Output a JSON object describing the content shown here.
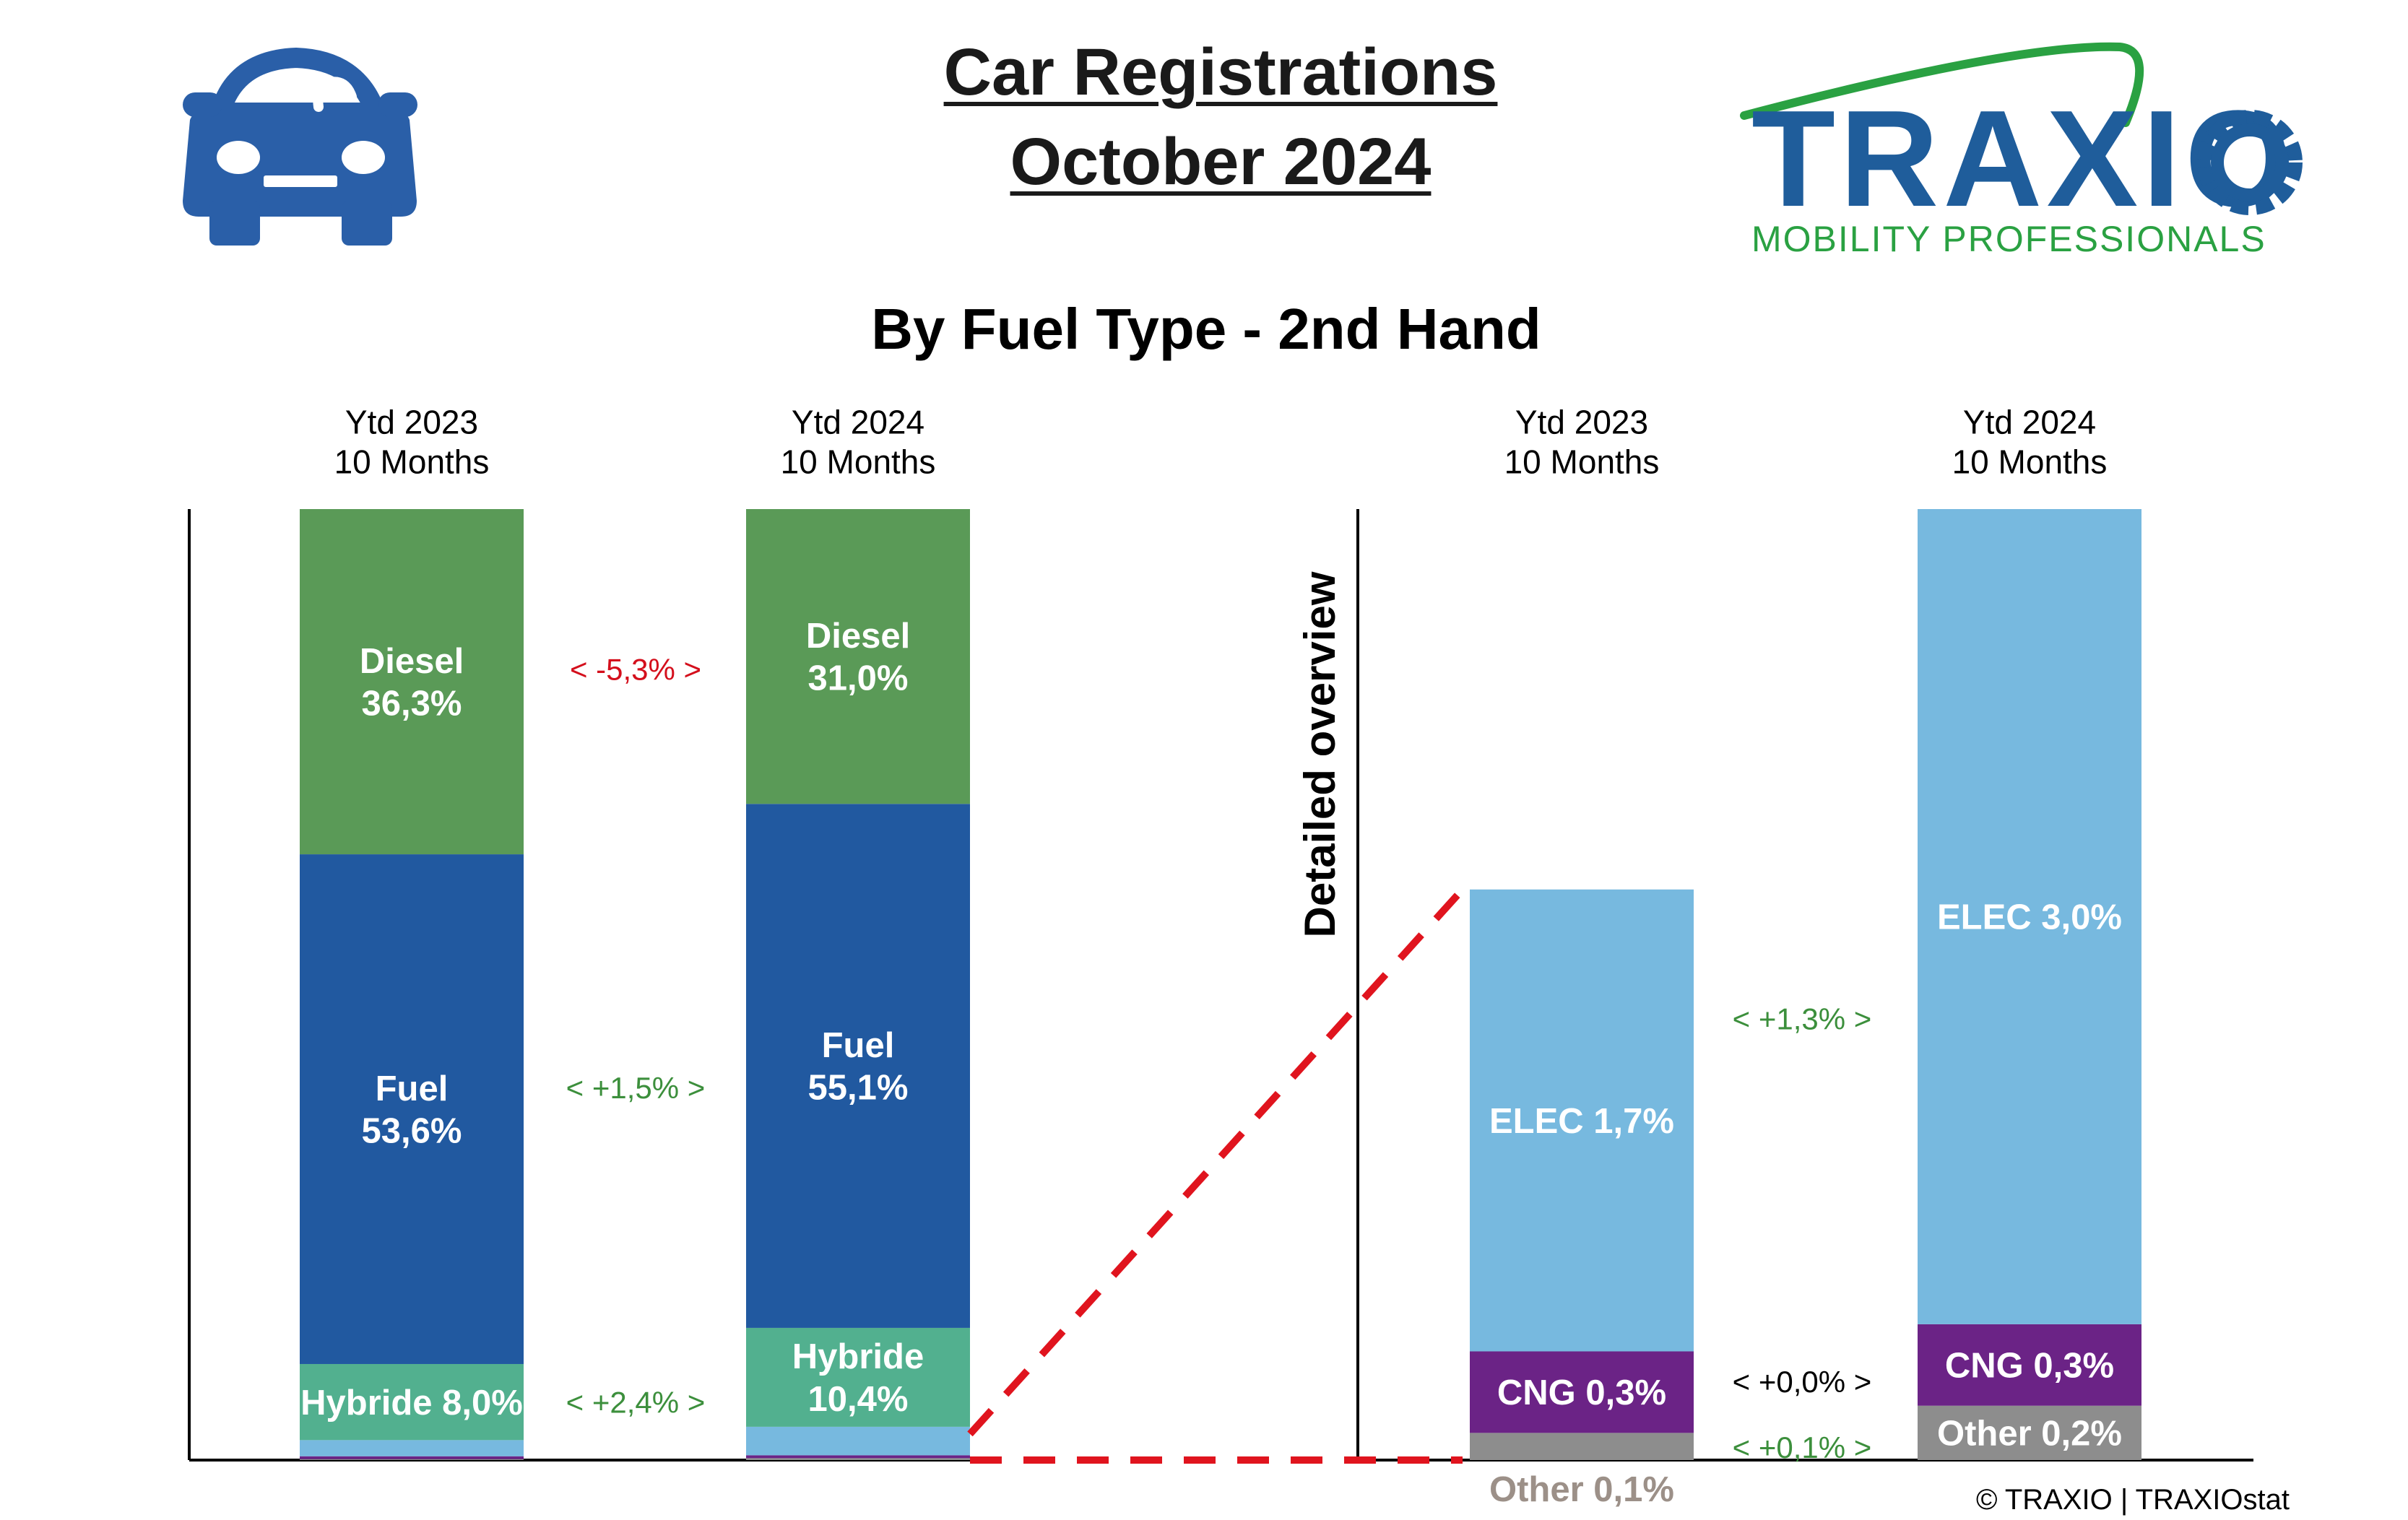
{
  "header": {
    "title_line1": "Car Registrations",
    "title_line2": "October 2024",
    "subtitle": "By Fuel Type - 2nd Hand",
    "logo_text": "TRAXIO",
    "logo_tagline": "MOBILITY PROFESSIONALS",
    "footer": "© TRAXIO | TRAXIOstat"
  },
  "colors": {
    "diesel": "#5a9a57",
    "fuel": "#2159a0",
    "hybride": "#52b08f",
    "elec": "#77b9df",
    "cng": "#6b2386",
    "other": "#8d8d8d",
    "other_label": "#9c9088",
    "pos": "#3c8f3c",
    "neg": "#d40f1c",
    "neutral": "#000000",
    "brand_blue": "#1f5d9b",
    "brand_green": "#2aa142",
    "car": "#2a5fa8",
    "zoom_line": "#e0141e"
  },
  "chart_data": [
    {
      "type": "bar",
      "stacked": true,
      "note_label": "Detailed overview",
      "categories": [
        {
          "line1": "Ytd 2023",
          "line2": "10 Months"
        },
        {
          "line1": "Ytd 2024",
          "line2": "10 Months"
        }
      ],
      "ylim": [
        0,
        100
      ],
      "series": [
        {
          "key": "other",
          "values": [
            0.1,
            0.2
          ]
        },
        {
          "key": "cng",
          "values": [
            0.3,
            0.3
          ]
        },
        {
          "key": "elec",
          "values": [
            1.7,
            3.0
          ]
        },
        {
          "key": "hybride",
          "name": "Hybride",
          "values": [
            8.0,
            10.4
          ],
          "labels": [
            [
              "Hybride 8,0%"
            ],
            [
              "Hybride",
              "10,4%"
            ]
          ]
        },
        {
          "key": "fuel",
          "name": "Fuel",
          "values": [
            53.6,
            55.1
          ],
          "labels": [
            [
              "Fuel",
              "53,6%"
            ],
            [
              "Fuel",
              "55,1%"
            ]
          ]
        },
        {
          "key": "diesel",
          "name": "Diesel",
          "values": [
            36.3,
            31.0
          ],
          "labels": [
            [
              "Diesel",
              "36,3%"
            ],
            [
              "Diesel",
              "31,0%"
            ]
          ]
        }
      ],
      "changes": [
        {
          "series": "diesel",
          "text": "<  -5,3%  >",
          "sign": "neg"
        },
        {
          "series": "fuel",
          "text": "<  +1,5%  >",
          "sign": "pos"
        },
        {
          "series": "hybride",
          "text": "<  +2,4%  >",
          "sign": "pos"
        }
      ]
    },
    {
      "type": "bar",
      "stacked": true,
      "categories": [
        {
          "line1": "Ytd 2023",
          "line2": "10 Months"
        },
        {
          "line1": "Ytd 2024",
          "line2": "10 Months"
        }
      ],
      "ylim": [
        0,
        3.5
      ],
      "series": [
        {
          "key": "other",
          "name": "Other",
          "values": [
            0.1,
            0.2
          ],
          "labels": [
            [
              "Other 0,1%"
            ],
            [
              "Other 0,2%"
            ]
          ]
        },
        {
          "key": "cng",
          "name": "CNG",
          "values": [
            0.3,
            0.3
          ],
          "labels": [
            [
              "CNG 0,3%"
            ],
            [
              "CNG 0,3%"
            ]
          ]
        },
        {
          "key": "elec",
          "name": "ELEC",
          "values": [
            1.7,
            3.0
          ],
          "labels": [
            [
              "ELEC 1,7%"
            ],
            [
              "ELEC 3,0%"
            ]
          ]
        }
      ],
      "changes": [
        {
          "series": "elec",
          "text": "<  +1,3%  >",
          "sign": "pos"
        },
        {
          "series": "cng",
          "text": "<  +0,0%  >",
          "sign": "neutral"
        },
        {
          "series": "other",
          "text": "<  +0,1%  >",
          "sign": "pos"
        }
      ]
    }
  ]
}
